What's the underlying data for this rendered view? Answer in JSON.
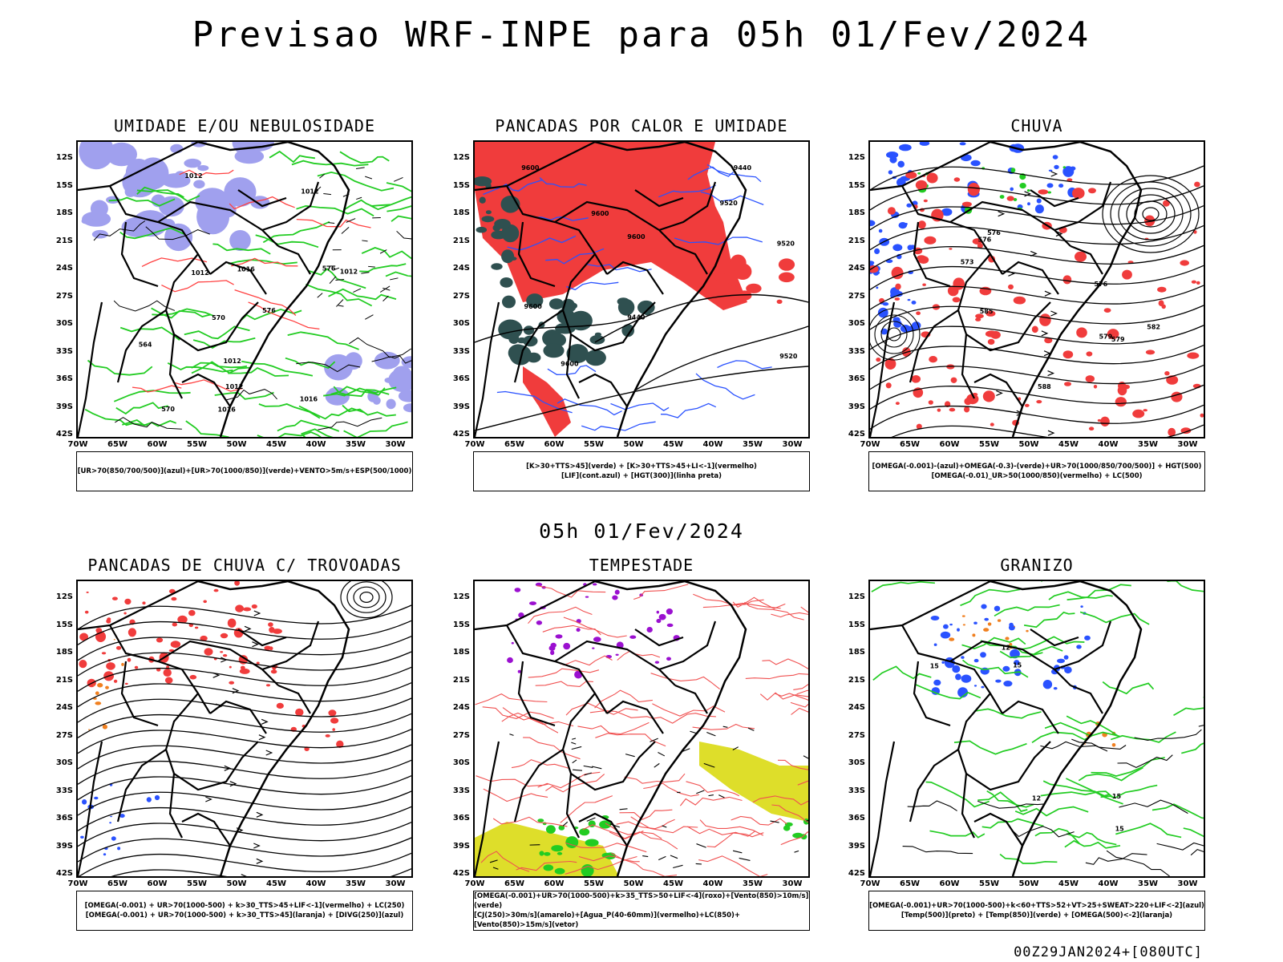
{
  "title": "Previsao WRF-INPE  para 05h 01/Fev/2024",
  "mid_title": "05h 01/Fev/2024",
  "footer": "00Z29JAN2024+[080UTC]",
  "lat_labels": [
    "12S",
    "15S",
    "18S",
    "21S",
    "24S",
    "27S",
    "30S",
    "33S",
    "36S",
    "39S",
    "42S"
  ],
  "lon_labels": [
    "70W",
    "65W",
    "60W",
    "55W",
    "50W",
    "45W",
    "40W",
    "35W",
    "30W"
  ],
  "panels": [
    {
      "title": "UMIDADE E/OU NEBULOSIDADE",
      "legend": [
        "[UR>70(850/700/500)](azul)+[UR>70(1000/850)](verde)+VENTO>5m/s+ESP(500/1000)"
      ]
    },
    {
      "title": "PANCADAS POR CALOR E UMIDADE",
      "legend": [
        "[K>30+TTS>45](verde) + [K>30+TTS>45+LI<-1](vermelho)",
        "[LIF](cont.azul) + [HGT(300)](linha preta)"
      ]
    },
    {
      "title": "CHUVA",
      "legend": [
        "[OMEGA(-0.001)-(azul)+OMEGA(-0.3)-(verde)+UR>70(1000/850/700/500)] + HGT(500)",
        "[OMEGA(-0.01)_UR>50(1000/850)(vermelho) + LC(500)"
      ]
    },
    {
      "title": "PANCADAS DE CHUVA C/ TROVOADAS",
      "legend": [
        "[OMEGA(-0.001) + UR>70(1000-500) + k>30_TTS>45+LIF<-1](vermelho) + LC(250)",
        "[OMEGA(-0.001) + UR>70(1000-500) + k>30_TTS>45](laranja) + [DIVG(250)](azul)"
      ]
    },
    {
      "title": "TEMPESTADE",
      "legend": [
        "[OMEGA(-0.001)+UR>70(1000-500)+k>35_TTS>50+LIF<-4](roxo)+[Vento(850)>10m/s](verde)",
        "[CJ(250)>30m/s](amarelo)+[Agua_P(40-60mm)](vermelho)+LC(850)+[Vento(850)>15m/s](vetor)"
      ]
    },
    {
      "title": "GRANIZO",
      "legend": [
        "[OMEGA(-0.001)+UR>70(1000-500)+k<60+TTS>52+VT>25+SWEAT>220+LIF<-2](azul)",
        "[Temp(500)](preto) + [Temp(850)](verde) + [OMEGA(500)<-2](laranja)"
      ]
    }
  ],
  "contour_labels": {
    "p1": [
      "1012",
      "1012",
      "1012",
      "1012",
      "1016",
      "1016",
      "1016",
      "1012",
      "1012",
      "576",
      "570",
      "570",
      "564",
      "576"
    ],
    "p2": [
      "9600",
      "9600",
      "9600",
      "9520",
      "9520",
      "9440",
      "9440",
      "9600",
      "9520",
      "9600"
    ],
    "p3": [
      "588",
      "585",
      "582",
      "579",
      "576",
      "579",
      "576",
      "573",
      "576"
    ],
    "p6": [
      "15",
      "15",
      "12",
      "12",
      "15",
      "15"
    ]
  },
  "colors": {
    "blue": "#2a52ff",
    "green": "#22cc22",
    "red": "#f03c3c",
    "purple": "#9b10d0",
    "yellow": "#dede2a",
    "orange": "#f08020",
    "lavender": "#a0a0ee",
    "darkteal": "#2f5050"
  }
}
